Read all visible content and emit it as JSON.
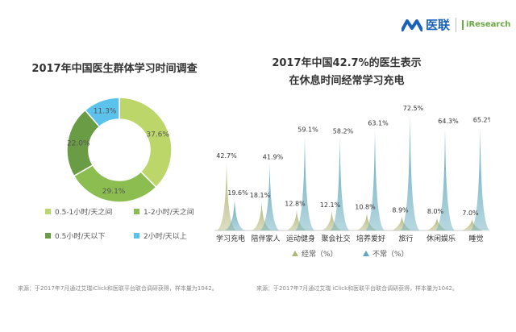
{
  "brand": {
    "name": "医联",
    "partner": "iResearch"
  },
  "left_title": "2017年中国医生群体学习时间调查",
  "right_title_line1": "2017年中国42.7%的医生表示",
  "right_title_line2": "在休息时间经常学习充电",
  "left_source": "来源：于2017年7月通过艾瑞iClick和医联平台联合调研获得，样本量为1042。",
  "right_source": "来源：于2017年7月通过艾瑞 iClick和医联平台联合调研获得，样本量为1042。",
  "colors": {
    "green1": "#bcd66a",
    "green2": "#8cbd50",
    "green3": "#6a9b45",
    "blue": "#5bc2ec",
    "olive": "#b0b576",
    "teal": "#5fa7ba"
  },
  "chart_data": [
    {
      "type": "pie",
      "title": "2017年中国医生群体学习时间调查",
      "categories": [
        "0.5-1小时/天之间",
        "1-2小时/天之间",
        "0.5小时/天以下",
        "2小时/天以上"
      ],
      "values": [
        37.6,
        29.1,
        22.0,
        11.3
      ],
      "value_labels": [
        "37.6%",
        "29.1%",
        "22.0%",
        "11.3%"
      ],
      "colors": [
        "#bcd66a",
        "#8cbd50",
        "#6a9b45",
        "#5bc2ec"
      ],
      "legend_placement": "bottom"
    },
    {
      "type": "area",
      "title": "2017年中国42.7%的医生表示在休息时间经常学习充电",
      "categories": [
        "学习充电",
        "陪伴家人",
        "运动健身",
        "聚会社交",
        "培养爱好",
        "旅行",
        "休闲娱乐",
        "睡觉"
      ],
      "series": [
        {
          "name": "经常（%）",
          "values": [
            42.7,
            18.1,
            12.8,
            12.1,
            10.8,
            8.9,
            8.0,
            7.0
          ],
          "labels": [
            "42.7%",
            "18.1%",
            "12.8%",
            "12.1%",
            "10.8%",
            "8.9%",
            "8.0%",
            "7.0%"
          ],
          "color": "#b0b576"
        },
        {
          "name": "不常（%）",
          "values": [
            19.6,
            41.9,
            59.1,
            58.2,
            63.1,
            72.5,
            64.3,
            65.2
          ],
          "labels": [
            "19.6%",
            "41.9%",
            "59.1%",
            "58.2%",
            "63.1%",
            "72.5%",
            "64.3%",
            "65.2%"
          ],
          "color": "#5fa7ba"
        }
      ],
      "ylim": [
        0,
        80
      ],
      "grid": false,
      "legend_placement": "bottom"
    }
  ]
}
